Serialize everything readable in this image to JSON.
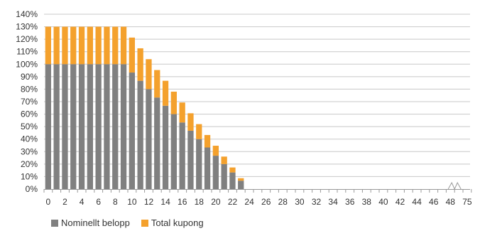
{
  "chart_data": {
    "type": "bar",
    "stacked": true,
    "categories": [
      "0",
      "1",
      "2",
      "3",
      "4",
      "5",
      "6",
      "7",
      "8",
      "9",
      "10",
      "11",
      "12",
      "13",
      "14",
      "15",
      "16",
      "17",
      "18",
      "19",
      "20",
      "21",
      "22",
      "23",
      "24",
      "25",
      "26",
      "27",
      "28",
      "29",
      "30",
      "31",
      "32",
      "33",
      "34",
      "35",
      "36",
      "37",
      "38",
      "39",
      "40",
      "41",
      "42",
      "43",
      "44",
      "45",
      "46",
      "47",
      "48",
      "49",
      "75"
    ],
    "x_tick_labels": [
      "0",
      "2",
      "4",
      "6",
      "8",
      "10",
      "12",
      "14",
      "16",
      "18",
      "20",
      "22",
      "24",
      "26",
      "28",
      "30",
      "32",
      "34",
      "36",
      "38",
      "40",
      "42",
      "44",
      "46",
      "48",
      "75"
    ],
    "series": [
      {
        "name": "Nominellt belopp",
        "color": "#808080",
        "values": [
          100,
          100,
          100,
          100,
          100,
          100,
          100,
          100,
          100,
          100,
          93.3,
          86.7,
          80,
          73.3,
          66.7,
          60,
          53.3,
          46.7,
          40,
          33.3,
          26.7,
          20,
          13.3,
          6.7,
          0,
          0,
          0,
          0,
          0,
          0,
          0,
          0,
          0,
          0,
          0,
          0,
          0,
          0,
          0,
          0,
          0,
          0,
          0,
          0,
          0,
          0,
          0,
          0,
          0,
          0,
          0
        ]
      },
      {
        "name": "Total kupong",
        "color": "#f4a12d",
        "values": [
          30,
          30,
          30,
          30,
          30,
          30,
          30,
          30,
          30,
          30,
          28,
          26,
          24,
          22,
          20,
          18,
          16,
          14,
          12,
          10,
          8,
          6,
          4,
          2,
          0,
          0,
          0,
          0,
          0,
          0,
          0,
          0,
          0,
          0,
          0,
          0,
          0,
          0,
          0,
          0,
          0,
          0,
          0,
          0,
          0,
          0,
          0,
          0,
          0,
          0,
          0
        ]
      }
    ],
    "y_ticks": [
      "0%",
      "10%",
      "20%",
      "30%",
      "40%",
      "50%",
      "60%",
      "70%",
      "80%",
      "90%",
      "100%",
      "110%",
      "120%",
      "130%",
      "140%"
    ],
    "ylim": [
      0,
      140
    ],
    "grid": true,
    "axis_break": "between 49 and 75",
    "legend_position": "bottom-left"
  }
}
